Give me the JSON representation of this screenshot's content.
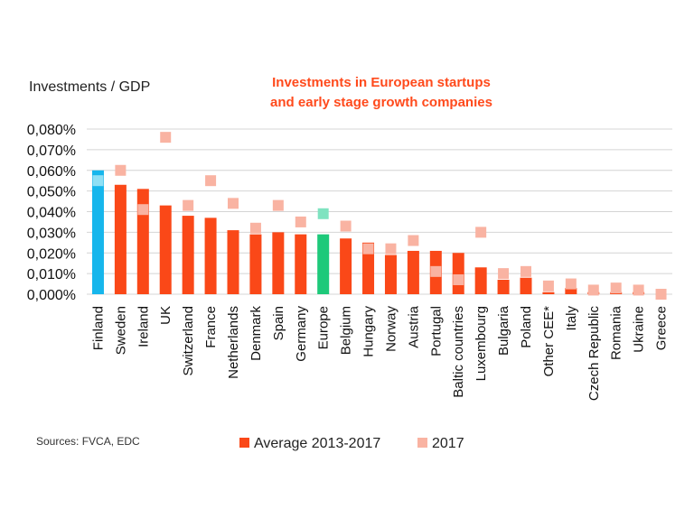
{
  "chart_data": {
    "type": "bar",
    "title_lines": [
      "Investments in European startups",
      "and early stage growth companies"
    ],
    "ylabel": "Investments / GDP",
    "ylim": [
      0,
      0.08
    ],
    "yticks": [
      0,
      0.01,
      0.02,
      0.03,
      0.04,
      0.05,
      0.06,
      0.07,
      0.08
    ],
    "ytick_labels": [
      "0,000%",
      "0,010%",
      "0,020%",
      "0,030%",
      "0,040%",
      "0,050%",
      "0,060%",
      "0,070%",
      "0,080%"
    ],
    "grid": true,
    "categories": [
      "Finland",
      "Sweden",
      "Ireland",
      "UK",
      "Switzerland",
      "France",
      "Netherlands",
      "Denmark",
      "Spain",
      "Germany",
      "Europe",
      "Belgium",
      "Hungary",
      "Norway",
      "Austria",
      "Portugal",
      "Baltic countries",
      "Luxembourg",
      "Bulgaria",
      "Poland",
      "Other CEE*",
      "Italy",
      "Czech Republic",
      "Romania",
      "Ukraine",
      "Greece"
    ],
    "series": [
      {
        "name": "Average 2013-2017",
        "values": [
          0.06,
          0.053,
          0.051,
          0.043,
          0.038,
          0.037,
          0.031,
          0.029,
          0.03,
          0.029,
          0.029,
          0.027,
          0.025,
          0.019,
          0.021,
          0.021,
          0.02,
          0.013,
          0.007,
          0.008,
          0.001,
          0.003,
          0.001,
          0.001,
          0.001,
          0.0
        ]
      },
      {
        "name": "2017",
        "values": [
          0.055,
          0.06,
          0.041,
          0.076,
          0.043,
          0.055,
          0.044,
          0.032,
          0.043,
          0.035,
          0.039,
          0.033,
          0.022,
          0.022,
          0.026,
          0.011,
          0.007,
          0.03,
          0.01,
          0.011,
          0.004,
          0.005,
          0.002,
          0.003,
          0.002,
          0.0
        ]
      }
    ],
    "highlights": {
      "Finland": {
        "bar": "#16b6ec",
        "marker": "#8fe0f5"
      },
      "Europe": {
        "bar": "#1dc97a",
        "marker": "#7fe3c0"
      }
    },
    "colors": {
      "bar": "#fa4818",
      "marker": "#f9b3a2",
      "grid": "#d4d4d4",
      "title": "#ff4a1c"
    },
    "legend_position": "bottom",
    "source": "Sources: FVCA, EDC"
  }
}
